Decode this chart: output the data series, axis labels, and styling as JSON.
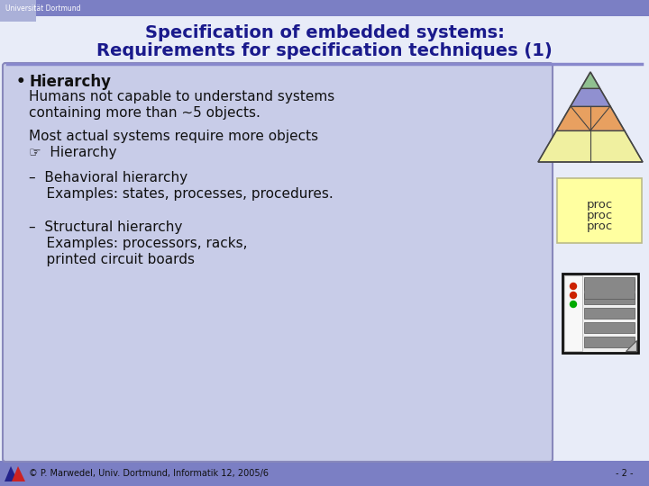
{
  "bg_color": "#ffffff",
  "slide_bg": "#e8ecf8",
  "header_bg": "#7b7fc4",
  "title_line1": "Specification of embedded systems:",
  "title_line2": "Requirements for specification techniques (1)",
  "title_color": "#1a1a8c",
  "univ_text": "Universität Dortmund",
  "univ_color": "#ffffff",
  "univ_bg": "#7b7fc4",
  "content_bg": "#c8cce8",
  "content_border": "#8888bb",
  "footer_text": "© P. Marwedel, Univ. Dortmund, Informatik 12, 2005/6",
  "footer_page": "- 2 -",
  "footer_bg": "#7b7fc4",
  "text_dark": "#111111",
  "proc_box_bg": "#ffffa0",
  "pyramid_colors": [
    "#90c090",
    "#9090d0",
    "#e8a060",
    "#f0f0a0"
  ],
  "separator_color": "#8888cc"
}
